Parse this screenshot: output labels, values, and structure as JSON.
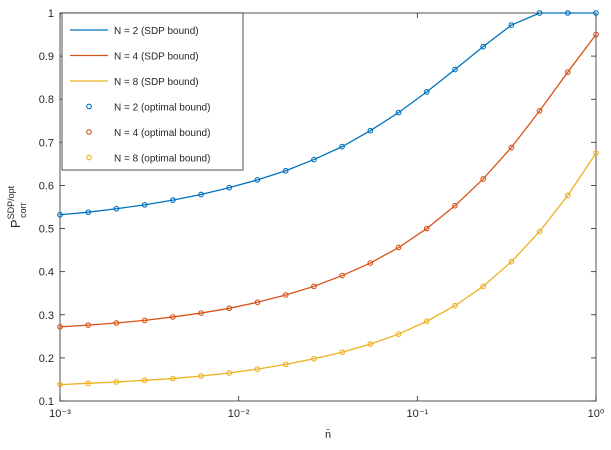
{
  "chart_data": {
    "type": "line",
    "log_x": true,
    "x_label": "n̄",
    "y_label": {
      "base": "P",
      "superscript": "SDP/opt",
      "subscript": "corr"
    },
    "x": [
      0.001,
      0.001438,
      0.002069,
      0.002976,
      0.004281,
      0.006158,
      0.008859,
      0.01274,
      0.01833,
      0.02637,
      0.03793,
      0.05456,
      0.07848,
      0.1129,
      0.1624,
      0.2336,
      0.336,
      0.4833,
      0.6952,
      1
    ],
    "xlim": [
      0.001,
      1
    ],
    "xticks": [
      {
        "value": 0.001,
        "label": "10⁻³"
      },
      {
        "value": 0.01,
        "label": "10⁻²"
      },
      {
        "value": 0.1,
        "label": "10⁻¹"
      },
      {
        "value": 1,
        "label": "10⁰"
      }
    ],
    "ylim": [
      0.1,
      1
    ],
    "yticks": [
      0.1,
      0.2,
      0.3,
      0.4,
      0.5,
      0.6,
      0.7,
      0.8,
      0.9,
      1
    ],
    "legend": "upper left",
    "series": [
      {
        "name": "N = 2 (SDP bound)",
        "style": "line",
        "color": "#0072bd",
        "values": [
          0.532,
          0.538,
          0.546,
          0.555,
          0.566,
          0.579,
          0.595,
          0.613,
          0.634,
          0.66,
          0.69,
          0.727,
          0.769,
          0.817,
          0.869,
          0.922,
          0.972,
          1,
          1,
          1
        ]
      },
      {
        "name": "N = 4 (SDP bound)",
        "style": "line",
        "color": "#d95319",
        "values": [
          0.272,
          0.276,
          0.281,
          0.287,
          0.295,
          0.304,
          0.315,
          0.329,
          0.346,
          0.366,
          0.391,
          0.42,
          0.456,
          0.5,
          0.553,
          0.615,
          0.688,
          0.773,
          0.863,
          0.95
        ]
      },
      {
        "name": "N = 8 (SDP bound)",
        "style": "line",
        "color": "#edb120",
        "values": [
          0.138,
          0.141,
          0.144,
          0.148,
          0.152,
          0.158,
          0.165,
          0.174,
          0.185,
          0.198,
          0.213,
          0.232,
          0.255,
          0.285,
          0.321,
          0.366,
          0.423,
          0.493,
          0.577,
          0.675
        ]
      },
      {
        "name": "N = 2 (optimal bound)",
        "style": "marker",
        "color": "#0072bd",
        "values": [
          0.532,
          0.538,
          0.546,
          0.555,
          0.566,
          0.579,
          0.595,
          0.613,
          0.634,
          0.66,
          0.69,
          0.727,
          0.769,
          0.817,
          0.869,
          0.922,
          0.972,
          1,
          1,
          1
        ]
      },
      {
        "name": "N = 4 (optimal bound)",
        "style": "marker",
        "color": "#d95319",
        "values": [
          0.272,
          0.276,
          0.281,
          0.287,
          0.295,
          0.304,
          0.315,
          0.329,
          0.346,
          0.366,
          0.391,
          0.42,
          0.456,
          0.5,
          0.553,
          0.615,
          0.688,
          0.773,
          0.863,
          0.95
        ]
      },
      {
        "name": "N = 8 (optimal bound)",
        "style": "marker",
        "color": "#edb120",
        "values": [
          0.138,
          0.141,
          0.144,
          0.148,
          0.152,
          0.158,
          0.165,
          0.174,
          0.185,
          0.198,
          0.213,
          0.232,
          0.255,
          0.285,
          0.321,
          0.366,
          0.423,
          0.493,
          0.577,
          0.675
        ]
      }
    ]
  }
}
